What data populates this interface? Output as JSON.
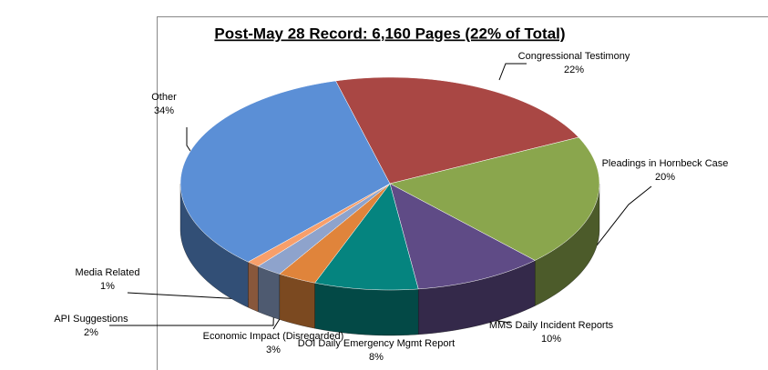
{
  "chart_data": {
    "type": "pie3d",
    "title": "Post-May 28 Record: 6,160 Pages (22% of Total)",
    "categories": [
      "Congressional Testimony",
      "Pleadings in Hornbeck Case",
      "MMS Daily Incident Reports",
      "DOI Daily Emergency Mgmt Report",
      "Economic Impact (Disregarded)",
      "API Suggestions",
      "Media Related",
      "Other"
    ],
    "values": [
      22,
      20,
      10,
      8,
      3,
      2,
      1,
      34
    ],
    "value_labels": [
      "22%",
      "20%",
      "10%",
      "8%",
      "3%",
      "2%",
      "1%",
      "34%"
    ],
    "colors": [
      "#a94744",
      "#8aa64d",
      "#5f4b86",
      "#05847f",
      "#e0843b",
      "#8ea3cc",
      "#f79f6b",
      "#5b8fd6"
    ]
  }
}
